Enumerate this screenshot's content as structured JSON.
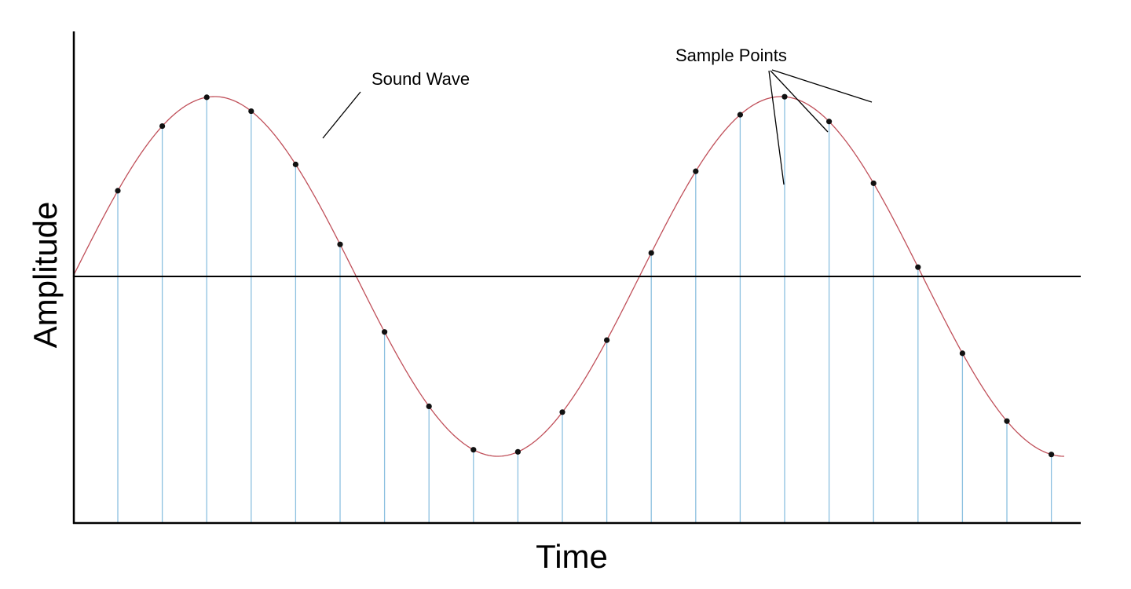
{
  "diagram": {
    "x_axis_label": "Time",
    "y_axis_label": "Amplitude",
    "annotation_wave": "Sound Wave",
    "annotation_points": "Sample Points",
    "colors": {
      "axis": "#000000",
      "wave": "#c0505a",
      "sample_line": "#8cc0e0",
      "sample_point": "#111111"
    }
  }
}
